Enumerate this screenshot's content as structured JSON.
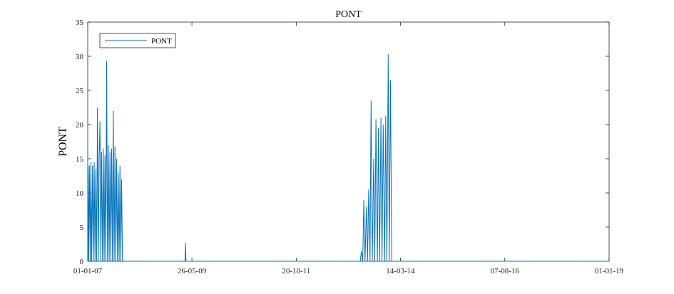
{
  "chart_data": {
    "type": "line",
    "title": "PONT",
    "xlabel": "",
    "ylabel": "PONT",
    "xlim": [
      "2007-01-01",
      "2019-01-01"
    ],
    "ylim": [
      0,
      35
    ],
    "x_ticks": [
      {
        "date": "2007-01-01",
        "label": "01-01-07"
      },
      {
        "date": "2009-05-26",
        "label": "26-05-09"
      },
      {
        "date": "2011-10-20",
        "label": "20-10-11"
      },
      {
        "date": "2014-03-14",
        "label": "14-03-14"
      },
      {
        "date": "2016-08-07",
        "label": "07-08-16"
      },
      {
        "date": "2019-01-01",
        "label": "01-01-19"
      }
    ],
    "y_ticks": [
      0,
      5,
      10,
      15,
      20,
      25,
      30,
      35
    ],
    "grid": false,
    "legend": {
      "position": "top-left",
      "entries": [
        "PONT"
      ]
    },
    "color": "#0072BD",
    "series": [
      {
        "name": "PONT",
        "x": [
          "2007-01-01",
          "2007-01-02",
          "2007-01-04",
          "2007-01-09",
          "2007-01-15",
          "2007-01-22",
          "2007-01-28",
          "2007-02-03",
          "2007-02-10",
          "2007-02-17",
          "2007-02-24",
          "2007-03-03",
          "2007-03-10",
          "2007-03-17",
          "2007-03-24",
          "2007-03-31",
          "2007-04-07",
          "2007-04-14",
          "2007-04-21",
          "2007-04-28",
          "2007-05-05",
          "2007-05-12",
          "2007-05-19",
          "2007-05-26",
          "2007-06-02",
          "2007-06-09",
          "2007-06-16",
          "2007-06-23",
          "2007-06-30",
          "2007-07-07",
          "2007-07-14",
          "2007-07-21",
          "2007-07-28",
          "2007-08-04",
          "2007-08-11",
          "2007-08-18",
          "2007-08-25",
          "2007-09-01",
          "2007-09-08",
          "2007-09-15",
          "2007-09-22",
          "2007-09-29",
          "2007-10-06",
          "2007-10-13",
          "2007-10-20",
          "2009-03-28",
          "2009-04-02",
          "2009-04-06",
          "2013-04-10",
          "2013-04-20",
          "2013-05-01",
          "2013-05-10",
          "2013-05-20",
          "2013-06-01",
          "2013-06-10",
          "2013-06-20",
          "2013-07-01",
          "2013-07-10",
          "2013-07-20",
          "2013-08-01",
          "2013-08-10",
          "2013-08-20",
          "2013-09-01",
          "2013-09-10",
          "2013-09-20",
          "2013-10-01",
          "2013-10-10",
          "2013-10-20",
          "2013-11-01",
          "2013-11-10",
          "2013-11-20",
          "2013-12-01",
          "2013-12-10",
          "2013-12-20",
          "2013-12-31",
          "2019-01-01"
        ],
        "y": [
          17,
          0,
          14,
          0,
          14,
          0,
          14.5,
          0,
          14,
          0,
          14.5,
          0,
          13.5,
          0,
          22.5,
          0,
          15,
          20.5,
          0,
          16,
          0,
          16.5,
          0,
          15.5,
          0,
          29.3,
          0,
          17,
          0,
          16,
          0,
          16.5,
          0,
          22,
          0,
          16.8,
          0,
          15,
          0,
          13,
          0,
          14,
          0,
          12,
          0,
          0,
          2.7,
          0,
          0,
          1.5,
          0,
          9,
          0,
          8,
          0,
          10.5,
          0,
          23.5,
          0,
          15,
          0,
          20.8,
          0,
          19.5,
          0,
          21,
          0,
          20,
          0,
          21.3,
          0,
          30.3,
          0,
          26.5,
          0,
          0
        ]
      }
    ]
  }
}
